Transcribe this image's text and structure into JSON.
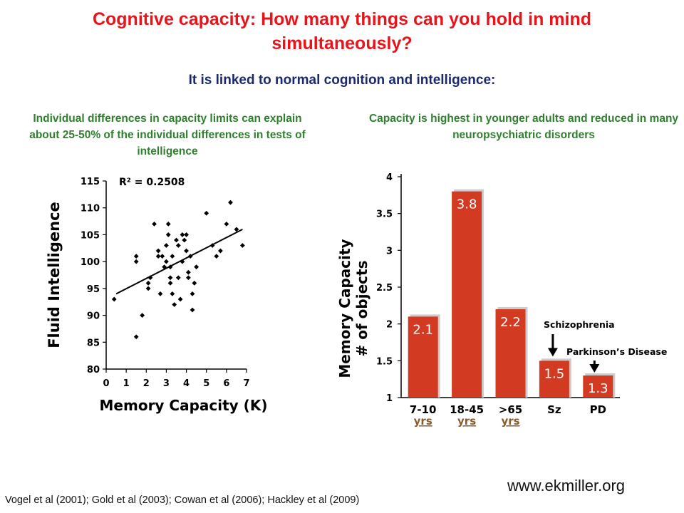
{
  "slide": {
    "title": "Cognitive capacity: How many things can you hold in mind simultaneously?",
    "subtitle": "It is linked to normal cognition and intelligence:",
    "left_caption": "Individual differences in capacity limits can explain about 25-50% of the individual differences in tests of intelligence",
    "right_caption": "Capacity is highest in younger adults and reduced in many neuropsychiatric disorders",
    "website": "www.ekmiller.org",
    "references": "Vogel et al (2001); Gold et al (2003); Cowan et al (2006); Hackley et al (2009)"
  },
  "chart_data": [
    {
      "type": "scatter",
      "xlabel": "Memory Capacity (K)",
      "ylabel": "Fluid Intelligence",
      "annotation": "R² = 0.2508",
      "xlim": [
        0,
        7
      ],
      "ylim": [
        80,
        115
      ],
      "xticks": [
        0,
        1,
        2,
        3,
        4,
        5,
        6,
        7
      ],
      "yticks": [
        80,
        85,
        90,
        95,
        100,
        105,
        110,
        115
      ],
      "points": [
        [
          0.4,
          93
        ],
        [
          1.5,
          100
        ],
        [
          1.5,
          101
        ],
        [
          1.5,
          86
        ],
        [
          1.8,
          90
        ],
        [
          2.1,
          95
        ],
        [
          2.1,
          96
        ],
        [
          2.2,
          97
        ],
        [
          2.4,
          107
        ],
        [
          2.6,
          102
        ],
        [
          2.6,
          101
        ],
        [
          2.7,
          94
        ],
        [
          2.8,
          101
        ],
        [
          2.9,
          99
        ],
        [
          3.0,
          103
        ],
        [
          3.0,
          100
        ],
        [
          3.1,
          105
        ],
        [
          3.1,
          107
        ],
        [
          3.2,
          96
        ],
        [
          3.2,
          97
        ],
        [
          3.2,
          99
        ],
        [
          3.3,
          101
        ],
        [
          3.3,
          94
        ],
        [
          3.4,
          92
        ],
        [
          3.5,
          104
        ],
        [
          3.6,
          103
        ],
        [
          3.6,
          97
        ],
        [
          3.7,
          93
        ],
        [
          3.8,
          100
        ],
        [
          3.8,
          105
        ],
        [
          3.9,
          104
        ],
        [
          4.0,
          102
        ],
        [
          4.0,
          105
        ],
        [
          4.1,
          98
        ],
        [
          4.1,
          97
        ],
        [
          4.2,
          101
        ],
        [
          4.3,
          94
        ],
        [
          4.3,
          91
        ],
        [
          4.4,
          96
        ],
        [
          4.5,
          99
        ],
        [
          5.0,
          109
        ],
        [
          5.3,
          103
        ],
        [
          5.5,
          101
        ],
        [
          5.7,
          102
        ],
        [
          6.0,
          107
        ],
        [
          6.2,
          111
        ],
        [
          6.5,
          106
        ],
        [
          6.8,
          103
        ]
      ],
      "trendline": {
        "x": [
          0.5,
          6.8
        ],
        "y": [
          94,
          106
        ]
      }
    },
    {
      "type": "bar",
      "ylabel_lines": [
        "Memory Capacity",
        "# of objects"
      ],
      "ylim": [
        1,
        4
      ],
      "yticks": [
        "1",
        "1.5",
        "2",
        "2.5",
        "3",
        "3.5",
        "4"
      ],
      "categories": [
        {
          "top": "7-10",
          "bottom": "yrs"
        },
        {
          "top": "18-45",
          "bottom": "yrs"
        },
        {
          "top": ">65",
          "bottom": "yrs"
        },
        {
          "top": "Sz",
          "bottom": ""
        },
        {
          "top": "PD",
          "bottom": ""
        }
      ],
      "values": [
        2.1,
        3.8,
        2.2,
        1.5,
        1.3
      ],
      "value_labels": [
        "2.1",
        "3.8",
        "2.2",
        "1.5",
        "1.3"
      ],
      "annotations": [
        {
          "text": "Schizophrenia",
          "target": 3
        },
        {
          "text": "Parkinson’s Disease",
          "target": 4
        }
      ],
      "bar_color": "#d33a22",
      "shadow_color": "#cccccc"
    }
  ]
}
